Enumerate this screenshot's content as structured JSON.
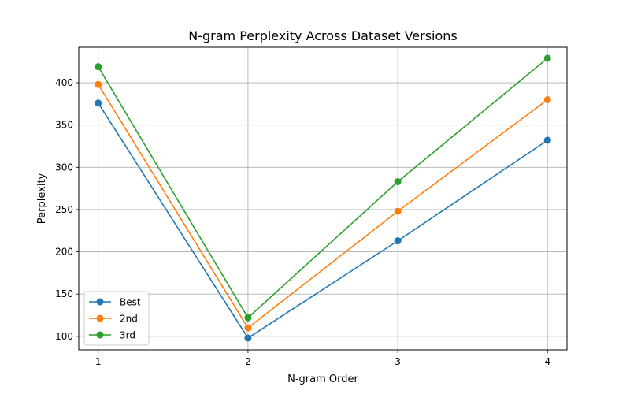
{
  "chart_data": {
    "type": "line",
    "title": "N-gram Perplexity Across Dataset Versions",
    "xlabel": "N-gram Order",
    "ylabel": "Perplexity",
    "x": [
      1,
      2,
      3,
      4
    ],
    "x_tick_labels": [
      "1",
      "2",
      "3",
      "4"
    ],
    "y_ticks": [
      100,
      150,
      200,
      250,
      300,
      350,
      400
    ],
    "y_tick_labels": [
      "100",
      "150",
      "200",
      "250",
      "300",
      "350",
      "400"
    ],
    "xlim": [
      0.87,
      4.13
    ],
    "ylim": [
      84,
      442
    ],
    "grid": true,
    "legend_position": "lower-left",
    "series": [
      {
        "name": "Best",
        "color": "#1f77b4",
        "values": [
          376,
          98,
          213,
          332
        ]
      },
      {
        "name": "2nd",
        "color": "#ff7f0e",
        "values": [
          398,
          110,
          248,
          380
        ]
      },
      {
        "name": "3rd",
        "color": "#2ca02c",
        "values": [
          419,
          122,
          283,
          429
        ]
      }
    ]
  }
}
